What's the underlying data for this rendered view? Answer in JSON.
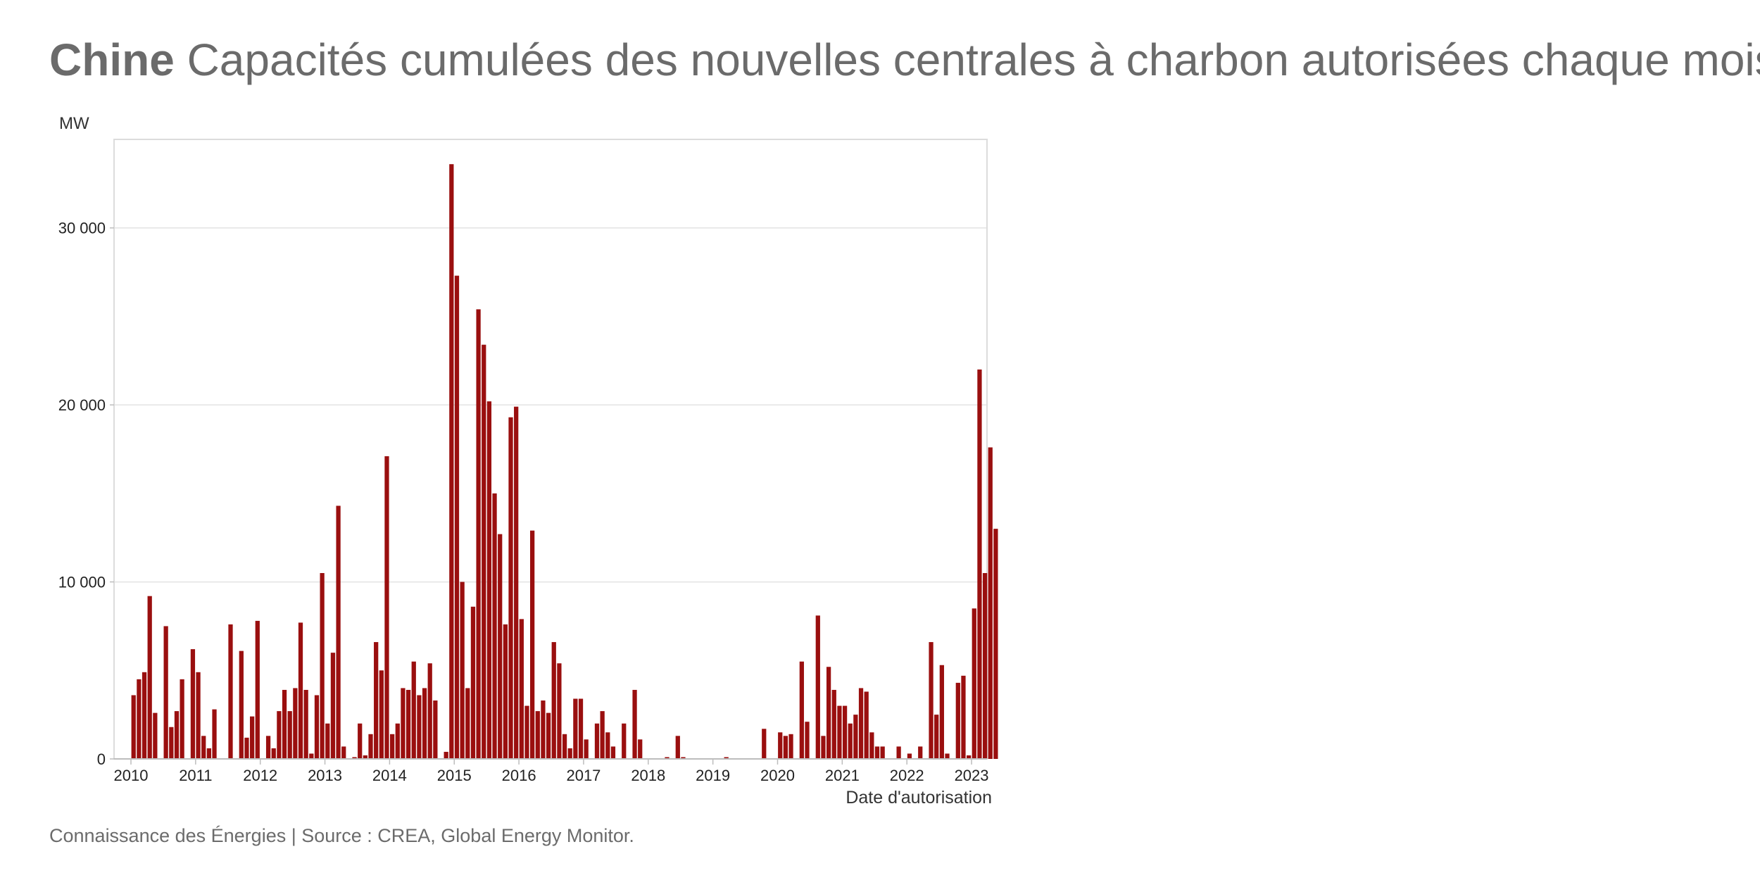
{
  "title": {
    "country": "Chine",
    "text": "Capacités cumulées des nouvelles centrales à charbon autorisées chaque mois"
  },
  "source": "Connaissance des Énergies | Source : CREA, Global Energy Monitor.",
  "colors": {
    "bar": "#9a0f0f",
    "grid": "#e3e3e3",
    "text": "#6b6b6b"
  },
  "chart_data": {
    "type": "bar",
    "ylabel": "MW",
    "xlabel": "Date d'autorisation",
    "ylim": [
      0,
      35000
    ],
    "yticks": [
      0,
      10000,
      20000,
      30000
    ],
    "ytick_labels": [
      "0",
      "10 000",
      "20 000",
      "30 000"
    ],
    "xticks": [
      "2010",
      "2011",
      "2012",
      "2013",
      "2014",
      "2015",
      "2016",
      "2017",
      "2018",
      "2019",
      "2020",
      "2021",
      "2022",
      "2023"
    ],
    "grid": true,
    "series": [
      {
        "values": [
          3600,
          4500,
          4900,
          9200,
          2600,
          0,
          7500,
          1800,
          2700,
          4500,
          0,
          6200,
          4900,
          1300,
          600,
          2800,
          0,
          0,
          7600,
          0,
          6100,
          1200,
          2400,
          7800,
          0,
          1300,
          600,
          2700,
          3900,
          2700,
          4000,
          7700,
          3900,
          300,
          3600,
          10500,
          2000,
          6000,
          14300,
          700,
          0,
          100,
          2000,
          200,
          1400,
          6600,
          5000,
          17100,
          1400,
          2000,
          4000,
          3900,
          5500,
          3600,
          4000,
          5400,
          3300,
          0,
          400,
          33600,
          27300,
          10000,
          4000,
          8600,
          25400,
          23400,
          20200,
          15000,
          12700,
          7600,
          19300,
          19900,
          7900,
          3000,
          12900,
          2700,
          3300,
          2600,
          6600,
          5400,
          1400,
          600,
          3400,
          3400,
          1100,
          0,
          2000,
          2700,
          1500,
          700,
          0,
          2000,
          0,
          3900,
          1100,
          0,
          0,
          0,
          0,
          100,
          0,
          1300,
          100,
          0,
          0,
          0,
          0,
          0,
          0,
          0,
          100,
          0,
          0,
          0,
          0,
          0,
          0,
          1700,
          0,
          0,
          1500,
          1300,
          1400,
          0,
          5500,
          2100,
          0,
          8100,
          1300,
          5200,
          3900,
          3000,
          3000,
          2000,
          2500,
          4000,
          3800,
          1500,
          700,
          700,
          0,
          0,
          700,
          0,
          300,
          0,
          700,
          0,
          6600,
          2500,
          5300,
          300,
          0,
          4300,
          4700,
          200,
          8500,
          22000,
          10500,
          17600,
          13000
        ]
      }
    ]
  }
}
